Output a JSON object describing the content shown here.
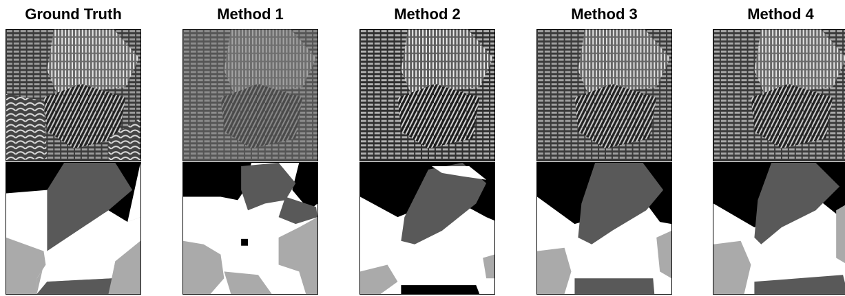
{
  "columns": [
    {
      "title": "Ground Truth"
    },
    {
      "title": "Method 1"
    },
    {
      "title": "Method 2"
    },
    {
      "title": "Method 3"
    },
    {
      "title": "Method 4"
    }
  ],
  "colors": {
    "black": "#000000",
    "dark": "#595959",
    "light": "#aaaaaa",
    "white": "#ffffff"
  }
}
